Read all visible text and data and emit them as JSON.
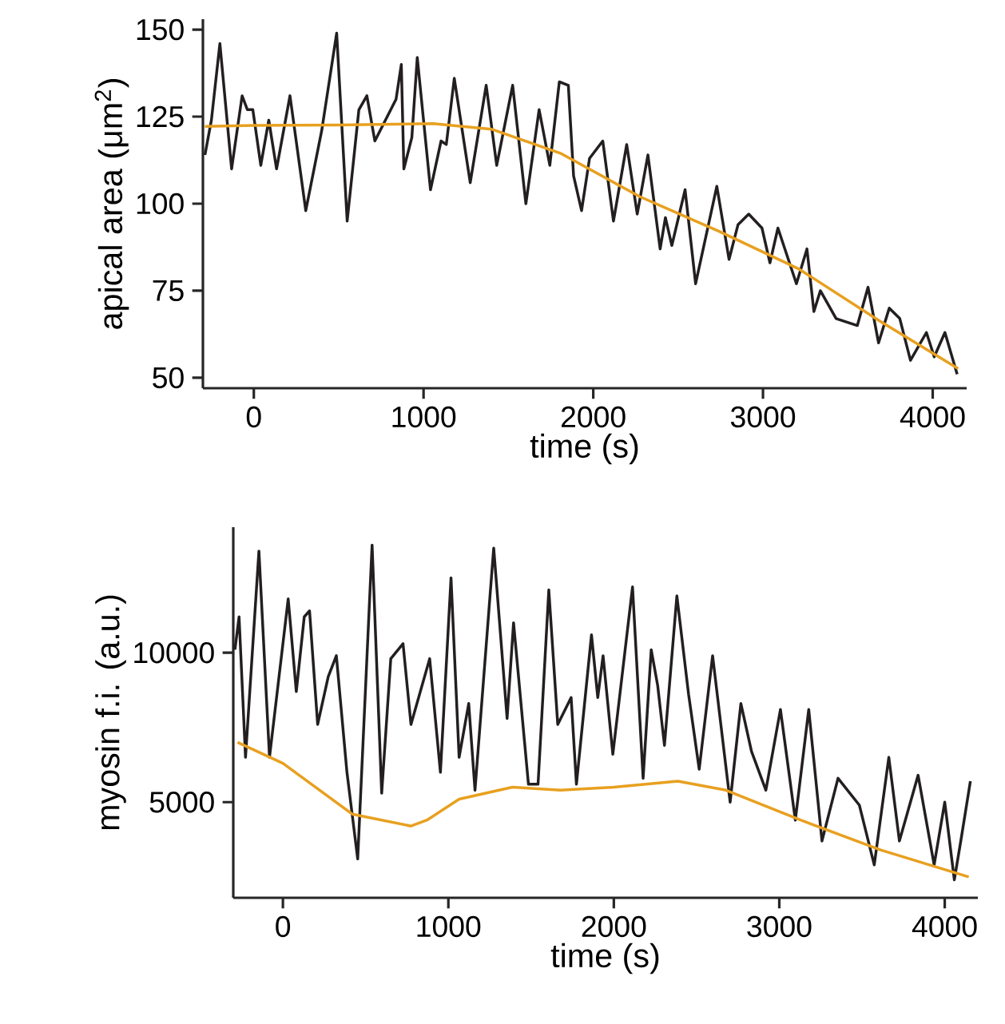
{
  "chart_data": [
    {
      "type": "line",
      "xlabel": "time (s)",
      "ylabel": "apical area (μm$^{2}$)",
      "xlim": [
        -300,
        4200
      ],
      "ylim": [
        47,
        153
      ],
      "xticks": [
        0,
        1000,
        2000,
        3000,
        4000
      ],
      "yticks": [
        50,
        75,
        100,
        125,
        150
      ],
      "series": [
        {
          "color": "#231f20",
          "x": [
            -288,
            -250,
            -200,
            -131,
            -69,
            -38,
            -6,
            41,
            88,
            134,
            213,
            306,
            400,
            488,
            550,
            619,
            666,
            713,
            838,
            869,
            884,
            931,
            963,
            1041,
            1103,
            1134,
            1181,
            1275,
            1369,
            1431,
            1525,
            1603,
            1681,
            1744,
            1800,
            1853,
            1884,
            1931,
            1978,
            2056,
            2119,
            2197,
            2259,
            2322,
            2394,
            2425,
            2463,
            2541,
            2603,
            2728,
            2800,
            2853,
            2916,
            2994,
            3041,
            3088,
            3197,
            3259,
            3300,
            3338,
            3431,
            3556,
            3619,
            3681,
            3744,
            3806,
            3869,
            3963,
            4009,
            4072,
            4144
          ],
          "values": [
            114,
            124,
            146,
            110,
            131,
            127,
            127,
            111,
            124,
            110,
            131,
            98,
            121,
            149,
            95,
            127,
            131,
            118,
            130,
            140,
            110,
            119,
            142,
            104,
            118,
            117,
            136,
            106,
            134,
            111,
            134,
            100,
            127,
            111,
            135,
            134,
            108,
            98,
            113,
            118,
            95,
            117,
            97,
            114,
            87,
            96,
            88,
            104,
            77,
            105,
            84,
            94,
            97,
            93,
            83,
            93,
            77,
            87,
            69,
            75,
            67,
            65,
            76,
            60,
            70,
            67,
            55,
            63,
            56,
            63,
            51
          ]
        },
        {
          "color": "#e8a020",
          "x": [
            -288,
            0,
            500,
            1056,
            1400,
            1806,
            2275,
            2744,
            3213,
            3681,
            4150
          ],
          "values": [
            122.2,
            122.5,
            122.6,
            123,
            121.4,
            114.5,
            102,
            92,
            81.2,
            66.5,
            52.6
          ]
        }
      ]
    },
    {
      "type": "line",
      "xlabel": "time (s)",
      "ylabel": "myosin f.i. (a.u.)",
      "xlim": [
        -300,
        4200
      ],
      "ylim": [
        1800,
        14200
      ],
      "xticks": [
        0,
        1000,
        2000,
        3000,
        4000
      ],
      "yticks": [
        5000,
        10000
      ],
      "series": [
        {
          "color": "#231f20",
          "x": [
            -290,
            -265,
            -226,
            -145,
            -81,
            32,
            81,
            129,
            161,
            210,
            274,
            323,
            387,
            452,
            539,
            597,
            652,
            726,
            774,
            887,
            952,
            1016,
            1065,
            1123,
            1161,
            1274,
            1355,
            1394,
            1484,
            1542,
            1607,
            1661,
            1742,
            1774,
            1865,
            1903,
            1935,
            1994,
            2113,
            2177,
            2226,
            2265,
            2306,
            2381,
            2452,
            2516,
            2597,
            2703,
            2768,
            2832,
            2919,
            3007,
            3097,
            3178,
            3258,
            3355,
            3484,
            3574,
            3662,
            3726,
            3839,
            3936,
            4000,
            4058,
            4097,
            4155
          ],
          "values": [
            10100,
            11200,
            6500,
            13400,
            6500,
            11800,
            8700,
            11200,
            11400,
            7600,
            9200,
            9900,
            6000,
            3100,
            13600,
            5300,
            9800,
            10300,
            7600,
            9800,
            6000,
            12500,
            6500,
            8300,
            5400,
            13500,
            7800,
            11000,
            5600,
            5600,
            12100,
            7600,
            8500,
            5600,
            10600,
            8500,
            9900,
            6600,
            12200,
            5800,
            10100,
            8900,
            6900,
            11900,
            8600,
            6100,
            9900,
            5000,
            8300,
            6700,
            5400,
            8100,
            4400,
            8100,
            3700,
            5800,
            4900,
            2900,
            6500,
            3700,
            5900,
            2900,
            5000,
            2400,
            3700,
            5700
          ]
        },
        {
          "color": "#e8a020",
          "x": [
            -274,
            0,
            419,
            774,
            871,
            1065,
            1387,
            1678,
            2000,
            2387,
            2678,
            3129,
            3613,
            4145
          ],
          "values": [
            7000,
            6300,
            4600,
            4200,
            4400,
            5100,
            5500,
            5400,
            5500,
            5700,
            5400,
            4400,
            3400,
            2500
          ]
        }
      ]
    }
  ]
}
